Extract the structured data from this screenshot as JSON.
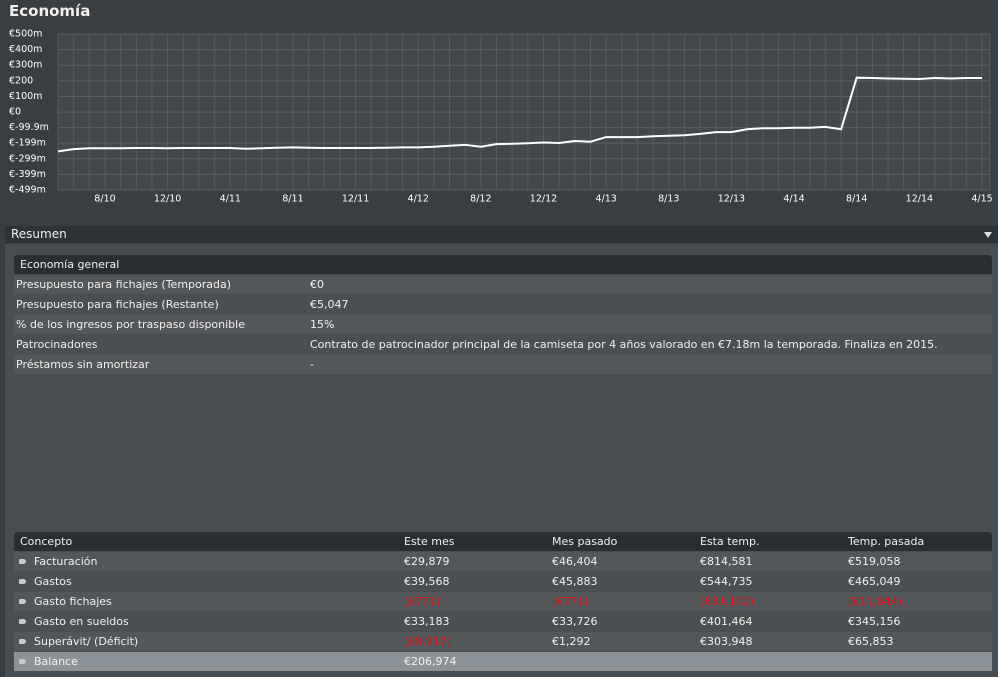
{
  "title": "Economía",
  "chart_data": {
    "type": "line",
    "categories": [
      null,
      null,
      null,
      "8/10",
      null,
      null,
      null,
      "12/10",
      null,
      null,
      null,
      "4/11",
      null,
      null,
      null,
      "8/11",
      null,
      null,
      null,
      "12/11",
      null,
      null,
      null,
      "4/12",
      null,
      null,
      null,
      "8/12",
      null,
      null,
      null,
      "12/12",
      null,
      null,
      null,
      "4/13",
      null,
      null,
      null,
      "8/13",
      null,
      null,
      null,
      "12/13",
      null,
      null,
      null,
      "4/14",
      null,
      null,
      null,
      "8/14",
      null,
      null,
      null,
      "12/14",
      null,
      null,
      null,
      "4/15"
    ],
    "values": [
      -252,
      -237,
      -232,
      -232,
      -232,
      -230,
      -230,
      -232,
      -230,
      -230,
      -230,
      -230,
      -235,
      -232,
      -228,
      -226,
      -228,
      -230,
      -230,
      -230,
      -230,
      -228,
      -226,
      -226,
      -222,
      -215,
      -210,
      -222,
      -205,
      -203,
      -200,
      -195,
      -198,
      -185,
      -190,
      -160,
      -160,
      -160,
      -155,
      -152,
      -148,
      -140,
      -128,
      -128,
      -110,
      -103,
      -103,
      -100,
      -100,
      -95,
      -110,
      220,
      218,
      215,
      213,
      212,
      218,
      215,
      218,
      218
    ],
    "color": "#ffffff",
    "ylim": [
      -499,
      500
    ],
    "yticks": [
      {
        "value": 500,
        "label": "€500m"
      },
      {
        "value": 400,
        "label": "€400m"
      },
      {
        "value": 300,
        "label": "€300m"
      },
      {
        "value": 200,
        "label": "€200"
      },
      {
        "value": 100,
        "label": "€100m"
      },
      {
        "value": 0,
        "label": "€0"
      },
      {
        "value": -99.9,
        "label": "€-99.9m"
      },
      {
        "value": -199,
        "label": "€-199m"
      },
      {
        "value": -299,
        "label": "€-299m"
      },
      {
        "value": -399,
        "label": "€-399m"
      },
      {
        "value": -499,
        "label": "€-499m"
      }
    ],
    "grid": true
  },
  "summary": {
    "title": "Resumen",
    "section": "Economía general",
    "rows": [
      [
        "Presupuesto para fichajes (Temporada)",
        "€0"
      ],
      [
        "Presupuesto para fichajes (Restante)",
        "€5,047"
      ],
      [
        "% de los ingresos por traspaso disponible",
        "15%"
      ],
      [
        "Patrocinadores",
        "Contrato de patrocinador principal de la camiseta por 4 años valorado en €7.18m la temporada. Finaliza en 2015."
      ],
      [
        "Préstamos sin amortizar",
        "-"
      ]
    ]
  },
  "table": {
    "header": [
      "Concepto",
      "Este mes",
      "Mes pasado",
      "Esta temp.",
      "Temp. pasada"
    ],
    "rows": [
      [
        "Facturación",
        "€29,879",
        "€46,404",
        "€814,581",
        "€519,058"
      ],
      [
        "Gastos",
        "€39,568",
        "€45,883",
        "€544,735",
        "€465,049"
      ],
      [
        "Gasto fichajes",
        "(€771)",
        "(€771)",
        "(€34,102)",
        "(€11,844)"
      ],
      [
        "Gasto en sueldos",
        "€33,183",
        "€33,726",
        "€401,464",
        "€345,156"
      ],
      [
        "Superávit/ (Déficit)",
        "(€8,917)",
        "€1,292",
        "€303,948",
        "€65,853"
      ],
      [
        "Balance",
        "€206,974"
      ]
    ]
  }
}
